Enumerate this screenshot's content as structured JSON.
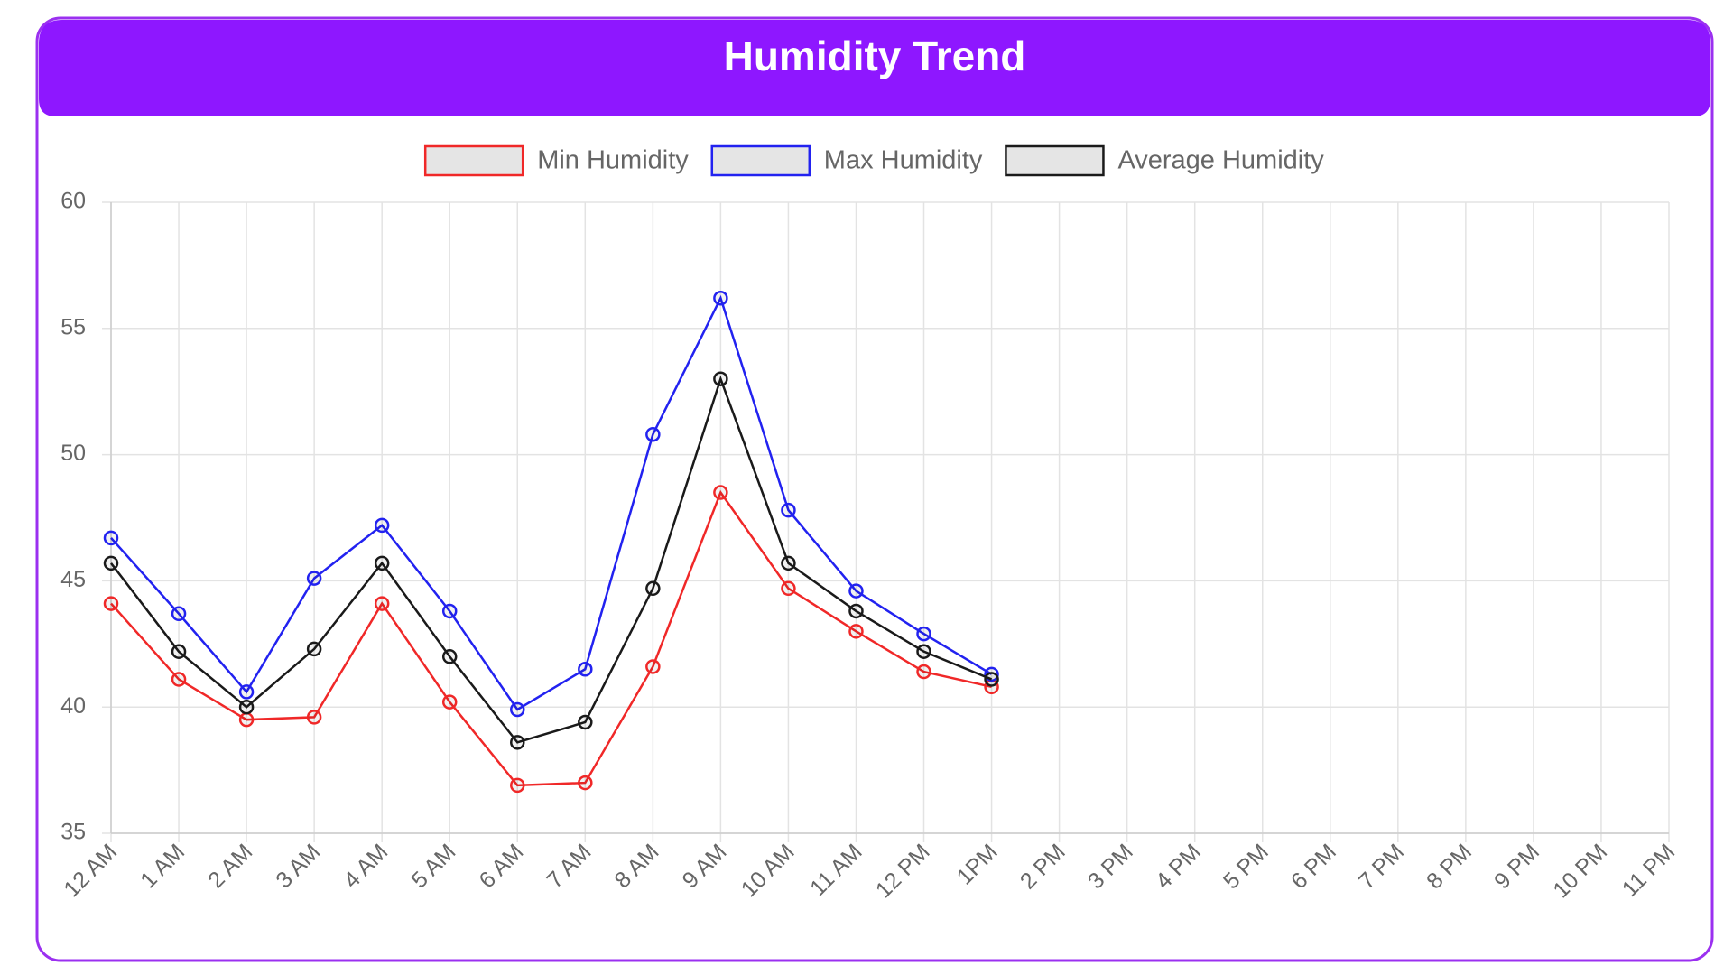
{
  "chart_data": {
    "type": "line",
    "title": "Humidity Trend",
    "categories": [
      "12 AM",
      "1 AM",
      "2 AM",
      "3 AM",
      "4 AM",
      "5 AM",
      "6 AM",
      "7 AM",
      "8 AM",
      "9 AM",
      "10 AM",
      "11 AM",
      "12 PM",
      "1PM",
      "2 PM",
      "3 PM",
      "4 PM",
      "5 PM",
      "6 PM",
      "7 PM",
      "8 PM",
      "9 PM",
      "10 PM",
      "11 PM"
    ],
    "series": [
      {
        "name": "Min Humidity",
        "color": "#f02828",
        "values": [
          44.1,
          41.1,
          39.5,
          39.6,
          44.1,
          40.2,
          36.9,
          37.0,
          41.6,
          48.5,
          44.7,
          43.0,
          41.4,
          40.8,
          null,
          null,
          null,
          null,
          null,
          null,
          null,
          null,
          null,
          null
        ]
      },
      {
        "name": "Max Humidity",
        "color": "#2222f0",
        "values": [
          46.7,
          43.7,
          40.6,
          45.1,
          47.2,
          43.8,
          39.9,
          41.5,
          50.8,
          56.2,
          47.8,
          44.6,
          42.9,
          41.3,
          null,
          null,
          null,
          null,
          null,
          null,
          null,
          null,
          null,
          null
        ]
      },
      {
        "name": "Average Humidity",
        "color": "#1a1a1a",
        "values": [
          45.7,
          42.2,
          40.0,
          42.3,
          45.7,
          42.0,
          38.6,
          39.4,
          44.7,
          53.0,
          45.7,
          43.8,
          42.2,
          41.1,
          null,
          null,
          null,
          null,
          null,
          null,
          null,
          null,
          null,
          null
        ]
      }
    ],
    "ylim": [
      35,
      60
    ],
    "yticks": [
      35,
      40,
      45,
      50,
      55,
      60
    ],
    "grid": true,
    "legend": "top"
  }
}
